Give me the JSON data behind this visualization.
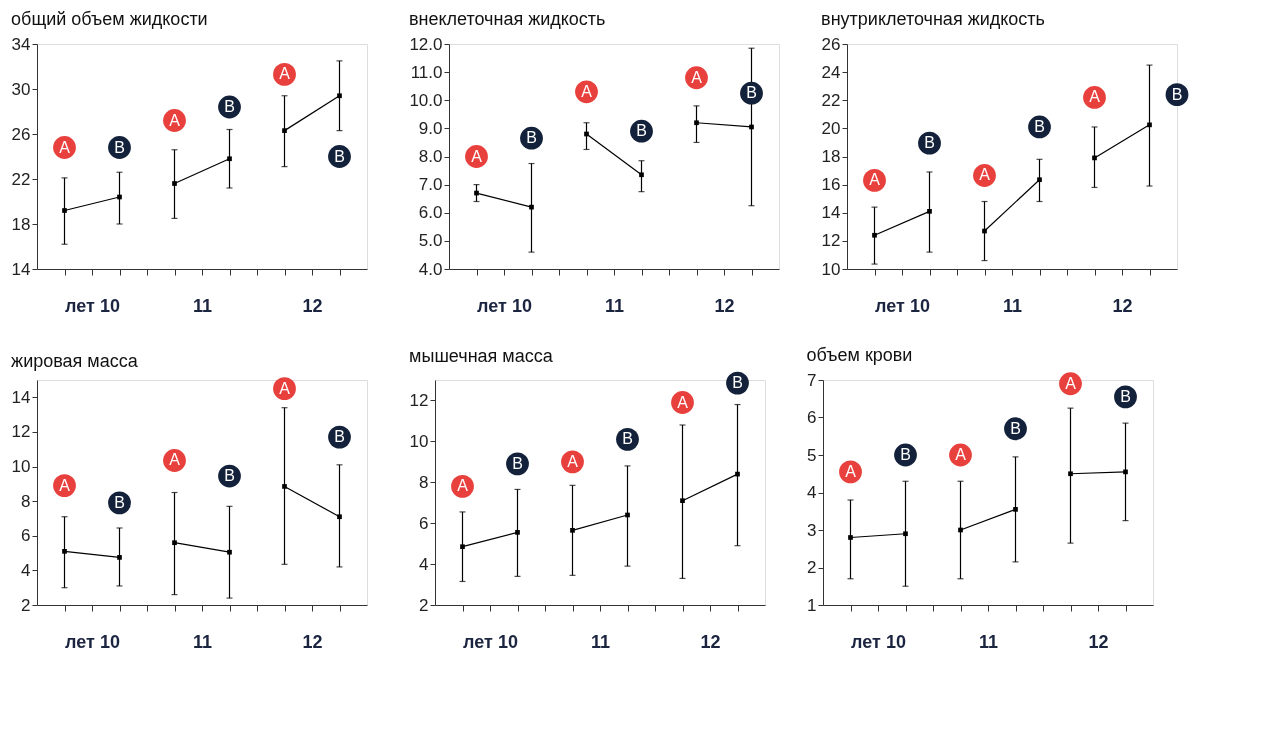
{
  "chart_data": [
    {
      "type": "line",
      "title": "общий объем жидкости",
      "marker": "square",
      "line_style": "solid",
      "grid": false,
      "xlim": [
        9.5,
        12.5
      ],
      "xticks": [
        {
          "value": 9.75,
          "label": null
        },
        {
          "value": 10,
          "label": "лет 10"
        },
        {
          "value": 10.25,
          "label": null
        },
        {
          "value": 10.5,
          "label": null
        },
        {
          "value": 10.75,
          "label": null
        },
        11,
        {
          "value": 11.25,
          "label": null
        },
        {
          "value": 11.5,
          "label": null
        },
        {
          "value": 11.75,
          "label": null
        },
        12,
        {
          "value": 12.25,
          "label": null
        }
      ],
      "ylim": [
        14,
        34
      ],
      "yticks": [
        14,
        18,
        22,
        26,
        30,
        34
      ],
      "series": [
        {
          "color": "#000000",
          "x": [
            9.75,
            10.25
          ],
          "values": [
            19.2,
            20.4
          ],
          "errors": [
            [
              16.2,
              22.1
            ],
            [
              18.0,
              22.6
            ]
          ]
        },
        {
          "color": "#000000",
          "x": [
            10.75,
            11.25
          ],
          "values": [
            21.6,
            23.8
          ],
          "errors": [
            [
              18.5,
              24.6
            ],
            [
              21.2,
              26.4
            ]
          ]
        },
        {
          "color": "#000000",
          "x": [
            11.75,
            12.25
          ],
          "values": [
            26.3,
            29.4
          ],
          "errors": [
            [
              23.1,
              29.4
            ],
            [
              26.3,
              32.5
            ]
          ]
        }
      ],
      "annotations": [
        {
          "text": "A",
          "x": 9.75,
          "y": 24.8
        },
        {
          "text": "B",
          "x": 10.25,
          "y": 24.8
        },
        {
          "text": "A",
          "x": 10.75,
          "y": 27.2
        },
        {
          "text": "B",
          "x": 11.25,
          "y": 28.4
        },
        {
          "text": "A",
          "x": 11.75,
          "y": 31.3
        },
        {
          "text": "B",
          "x": 12.25,
          "y": 24.0
        }
      ]
    },
    {
      "type": "line",
      "title": "внеклеточная жидкость",
      "marker": "square",
      "line_style": "solid",
      "grid": false,
      "xlim": [
        9.5,
        12.5
      ],
      "xticks": [
        {
          "value": 9.75,
          "label": null
        },
        {
          "value": 10,
          "label": "лет 10"
        },
        {
          "value": 10.25,
          "label": null
        },
        {
          "value": 10.5,
          "label": null
        },
        {
          "value": 10.75,
          "label": null
        },
        11,
        {
          "value": 11.25,
          "label": null
        },
        {
          "value": 11.5,
          "label": null
        },
        {
          "value": 11.75,
          "label": null
        },
        12,
        {
          "value": 12.25,
          "label": null
        }
      ],
      "ylim": [
        4,
        12
      ],
      "yticks": [
        {
          "value": 4,
          "label": "4.0"
        },
        {
          "value": 5,
          "label": "5.0"
        },
        {
          "value": 6,
          "label": "6.0"
        },
        {
          "value": 7,
          "label": "7.0"
        },
        {
          "value": 8,
          "label": "8.0"
        },
        {
          "value": 9,
          "label": "9.0"
        },
        {
          "value": 10,
          "label": "10.0"
        },
        {
          "value": 11,
          "label": "11.0"
        },
        {
          "value": 12,
          "label": "12.0"
        }
      ],
      "series": [
        {
          "color": "#000000",
          "x": [
            9.75,
            10.25
          ],
          "values": [
            6.7,
            6.2
          ],
          "errors": [
            [
              6.4,
              7.0
            ],
            [
              4.6,
              7.75
            ]
          ]
        },
        {
          "color": "#000000",
          "x": [
            10.75,
            11.25
          ],
          "values": [
            8.8,
            7.35
          ],
          "errors": [
            [
              8.25,
              9.2
            ],
            [
              6.75,
              7.85
            ]
          ]
        },
        {
          "color": "#000000",
          "x": [
            11.75,
            12.25
          ],
          "values": [
            9.2,
            9.05
          ],
          "errors": [
            [
              8.5,
              9.8
            ],
            [
              6.25,
              11.85
            ]
          ]
        }
      ],
      "annotations": [
        {
          "text": "A",
          "x": 9.75,
          "y": 8.0
        },
        {
          "text": "B",
          "x": 10.25,
          "y": 8.65
        },
        {
          "text": "A",
          "x": 10.75,
          "y": 10.3
        },
        {
          "text": "B",
          "x": 11.25,
          "y": 8.9
        },
        {
          "text": "A",
          "x": 11.75,
          "y": 10.8
        },
        {
          "text": "B",
          "x": 12.25,
          "y": 10.25
        }
      ]
    },
    {
      "type": "line",
      "title": "внутриклеточная жидкость",
      "marker": "square",
      "line_style": "solid",
      "grid": false,
      "xlim": [
        9.5,
        12.5
      ],
      "xticks": [
        {
          "value": 9.75,
          "label": null
        },
        {
          "value": 10,
          "label": "лет 10"
        },
        {
          "value": 10.25,
          "label": null
        },
        {
          "value": 10.5,
          "label": null
        },
        {
          "value": 10.75,
          "label": null
        },
        11,
        {
          "value": 11.25,
          "label": null
        },
        {
          "value": 11.5,
          "label": null
        },
        {
          "value": 11.75,
          "label": null
        },
        12,
        {
          "value": 12.25,
          "label": null
        }
      ],
      "ylim": [
        10,
        26
      ],
      "yticks": [
        10,
        12,
        14,
        16,
        18,
        20,
        22,
        24,
        26
      ],
      "series": [
        {
          "color": "#000000",
          "x": [
            9.75,
            10.25
          ],
          "values": [
            12.4,
            14.1
          ],
          "errors": [
            [
              10.35,
              14.4
            ],
            [
              11.2,
              16.9
            ]
          ]
        },
        {
          "color": "#000000",
          "x": [
            10.75,
            11.25
          ],
          "values": [
            12.7,
            16.35
          ],
          "errors": [
            [
              10.6,
              14.8
            ],
            [
              14.8,
              17.8
            ]
          ]
        },
        {
          "color": "#000000",
          "x": [
            11.75,
            12.25
          ],
          "values": [
            17.9,
            20.25
          ],
          "errors": [
            [
              15.8,
              20.1
            ],
            [
              15.9,
              24.5
            ]
          ]
        }
      ],
      "annotations": [
        {
          "text": "A",
          "x": 9.75,
          "y": 16.3
        },
        {
          "text": "B",
          "x": 10.25,
          "y": 18.95
        },
        {
          "text": "A",
          "x": 10.75,
          "y": 16.65
        },
        {
          "text": "B",
          "x": 11.25,
          "y": 20.1
        },
        {
          "text": "A",
          "x": 11.75,
          "y": 22.2
        },
        {
          "text": "B",
          "x": 12.5,
          "y": 22.4
        }
      ]
    },
    {
      "type": "line",
      "title": "жировая масса",
      "marker": "square",
      "line_style": "solid",
      "grid": false,
      "xlim": [
        9.5,
        12.5
      ],
      "xticks": [
        {
          "value": 9.75,
          "label": null
        },
        {
          "value": 10,
          "label": "лет 10"
        },
        {
          "value": 10.25,
          "label": null
        },
        {
          "value": 10.5,
          "label": null
        },
        {
          "value": 10.75,
          "label": null
        },
        11,
        {
          "value": 11.25,
          "label": null
        },
        {
          "value": 11.5,
          "label": null
        },
        {
          "value": 11.75,
          "label": null
        },
        12,
        {
          "value": 12.25,
          "label": null
        }
      ],
      "ylim": [
        2,
        15
      ],
      "yticks": [
        2,
        4,
        6,
        8,
        10,
        12,
        14
      ],
      "series": [
        {
          "color": "#000000",
          "x": [
            9.75,
            10.25
          ],
          "values": [
            5.1,
            4.75
          ],
          "errors": [
            [
              3.0,
              7.1
            ],
            [
              3.1,
              6.45
            ]
          ]
        },
        {
          "color": "#000000",
          "x": [
            10.75,
            11.25
          ],
          "values": [
            5.6,
            5.05
          ],
          "errors": [
            [
              2.6,
              8.5
            ],
            [
              2.4,
              7.7
            ]
          ]
        },
        {
          "color": "#000000",
          "x": [
            11.75,
            12.25
          ],
          "values": [
            8.85,
            7.1
          ],
          "errors": [
            [
              4.35,
              13.4
            ],
            [
              4.2,
              10.1
            ]
          ]
        }
      ],
      "annotations": [
        {
          "text": "A",
          "x": 9.75,
          "y": 8.9
        },
        {
          "text": "B",
          "x": 10.25,
          "y": 7.9
        },
        {
          "text": "A",
          "x": 10.75,
          "y": 10.35
        },
        {
          "text": "B",
          "x": 11.25,
          "y": 9.45
        },
        {
          "text": "A",
          "x": 11.75,
          "y": 14.5
        },
        {
          "text": "B",
          "x": 12.25,
          "y": 11.7
        }
      ]
    },
    {
      "type": "line",
      "title": "мышечная масса",
      "marker": "square",
      "line_style": "solid",
      "grid": false,
      "xlim": [
        9.5,
        12.5
      ],
      "xticks": [
        {
          "value": 9.75,
          "label": null
        },
        {
          "value": 10,
          "label": "лет 10"
        },
        {
          "value": 10.25,
          "label": null
        },
        {
          "value": 10.5,
          "label": null
        },
        {
          "value": 10.75,
          "label": null
        },
        11,
        {
          "value": 11.25,
          "label": null
        },
        {
          "value": 11.5,
          "label": null
        },
        {
          "value": 11.75,
          "label": null
        },
        12,
        {
          "value": 12.25,
          "label": null
        }
      ],
      "ylim": [
        2,
        13
      ],
      "yticks": [
        2,
        4,
        6,
        8,
        10,
        12
      ],
      "series": [
        {
          "color": "#000000",
          "x": [
            9.75,
            10.25
          ],
          "values": [
            4.85,
            5.55
          ],
          "errors": [
            [
              3.15,
              6.55
            ],
            [
              3.4,
              7.65
            ]
          ]
        },
        {
          "color": "#000000",
          "x": [
            10.75,
            11.25
          ],
          "values": [
            5.65,
            6.4
          ],
          "errors": [
            [
              3.45,
              7.85
            ],
            [
              3.9,
              8.8
            ]
          ]
        },
        {
          "color": "#000000",
          "x": [
            11.75,
            12.25
          ],
          "values": [
            7.1,
            8.4
          ],
          "errors": [
            [
              3.3,
              10.8
            ],
            [
              4.9,
              11.8
            ]
          ]
        }
      ],
      "annotations": [
        {
          "text": "A",
          "x": 9.75,
          "y": 7.8
        },
        {
          "text": "B",
          "x": 10.25,
          "y": 8.9
        },
        {
          "text": "A",
          "x": 10.75,
          "y": 9.0
        },
        {
          "text": "B",
          "x": 11.25,
          "y": 10.1
        },
        {
          "text": "A",
          "x": 11.75,
          "y": 11.9
        },
        {
          "text": "B",
          "x": 12.25,
          "y": 12.85
        }
      ]
    },
    {
      "type": "line",
      "title": "объем крови",
      "marker": "square",
      "line_style": "solid",
      "grid": false,
      "xlim": [
        9.5,
        12.5
      ],
      "xticks": [
        {
          "value": 9.75,
          "label": null
        },
        {
          "value": 10,
          "label": "лет 10"
        },
        {
          "value": 10.25,
          "label": null
        },
        {
          "value": 10.5,
          "label": null
        },
        {
          "value": 10.75,
          "label": null
        },
        11,
        {
          "value": 11.25,
          "label": null
        },
        {
          "value": 11.5,
          "label": null
        },
        {
          "value": 11.75,
          "label": null
        },
        12,
        {
          "value": 12.25,
          "label": null
        }
      ],
      "ylim": [
        1,
        7
      ],
      "yticks": [
        1,
        2,
        3,
        4,
        5,
        6,
        7
      ],
      "series": [
        {
          "color": "#000000",
          "x": [
            9.75,
            10.25
          ],
          "values": [
            2.8,
            2.9
          ],
          "errors": [
            [
              1.7,
              3.8
            ],
            [
              1.5,
              4.3
            ]
          ]
        },
        {
          "color": "#000000",
          "x": [
            10.75,
            11.25
          ],
          "values": [
            3.0,
            3.55
          ],
          "errors": [
            [
              1.7,
              4.3
            ],
            [
              2.15,
              4.95
            ]
          ]
        },
        {
          "color": "#000000",
          "x": [
            11.75,
            12.25
          ],
          "values": [
            4.5,
            4.55
          ],
          "errors": [
            [
              2.65,
              6.25
            ],
            [
              3.25,
              5.85
            ]
          ]
        }
      ],
      "annotations": [
        {
          "text": "A",
          "x": 9.75,
          "y": 4.55
        },
        {
          "text": "B",
          "x": 10.25,
          "y": 5.0
        },
        {
          "text": "A",
          "x": 10.75,
          "y": 5.0
        },
        {
          "text": "B",
          "x": 11.25,
          "y": 5.7
        },
        {
          "text": "A",
          "x": 11.75,
          "y": 6.9
        },
        {
          "text": "B",
          "x": 12.25,
          "y": 6.55
        }
      ]
    }
  ]
}
